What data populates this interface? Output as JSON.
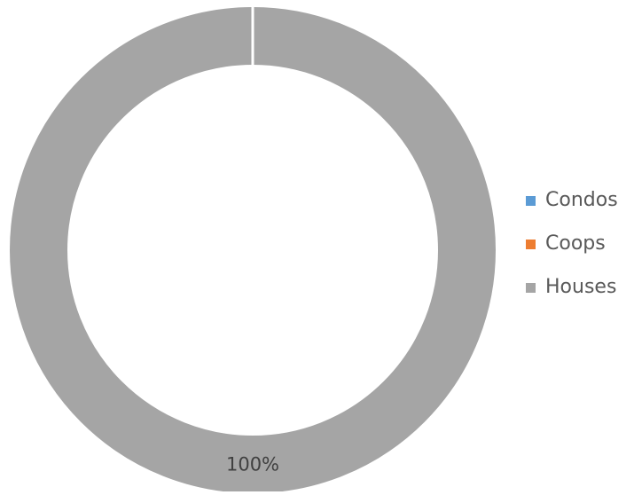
{
  "chart_data": {
    "type": "pie",
    "variant": "doughnut",
    "title": "",
    "legend_position": "right",
    "series": [
      {
        "categories": [
          "Condos",
          "Coops",
          "Houses"
        ],
        "values": [
          0,
          0,
          100
        ],
        "data_labels": [
          "",
          "",
          "100%"
        ]
      }
    ],
    "colors": {
      "Condos": "#5b9bd5",
      "Coops": "#ed7d31",
      "Houses": "#a5a5a5",
      "separator": "#ffffff"
    }
  }
}
